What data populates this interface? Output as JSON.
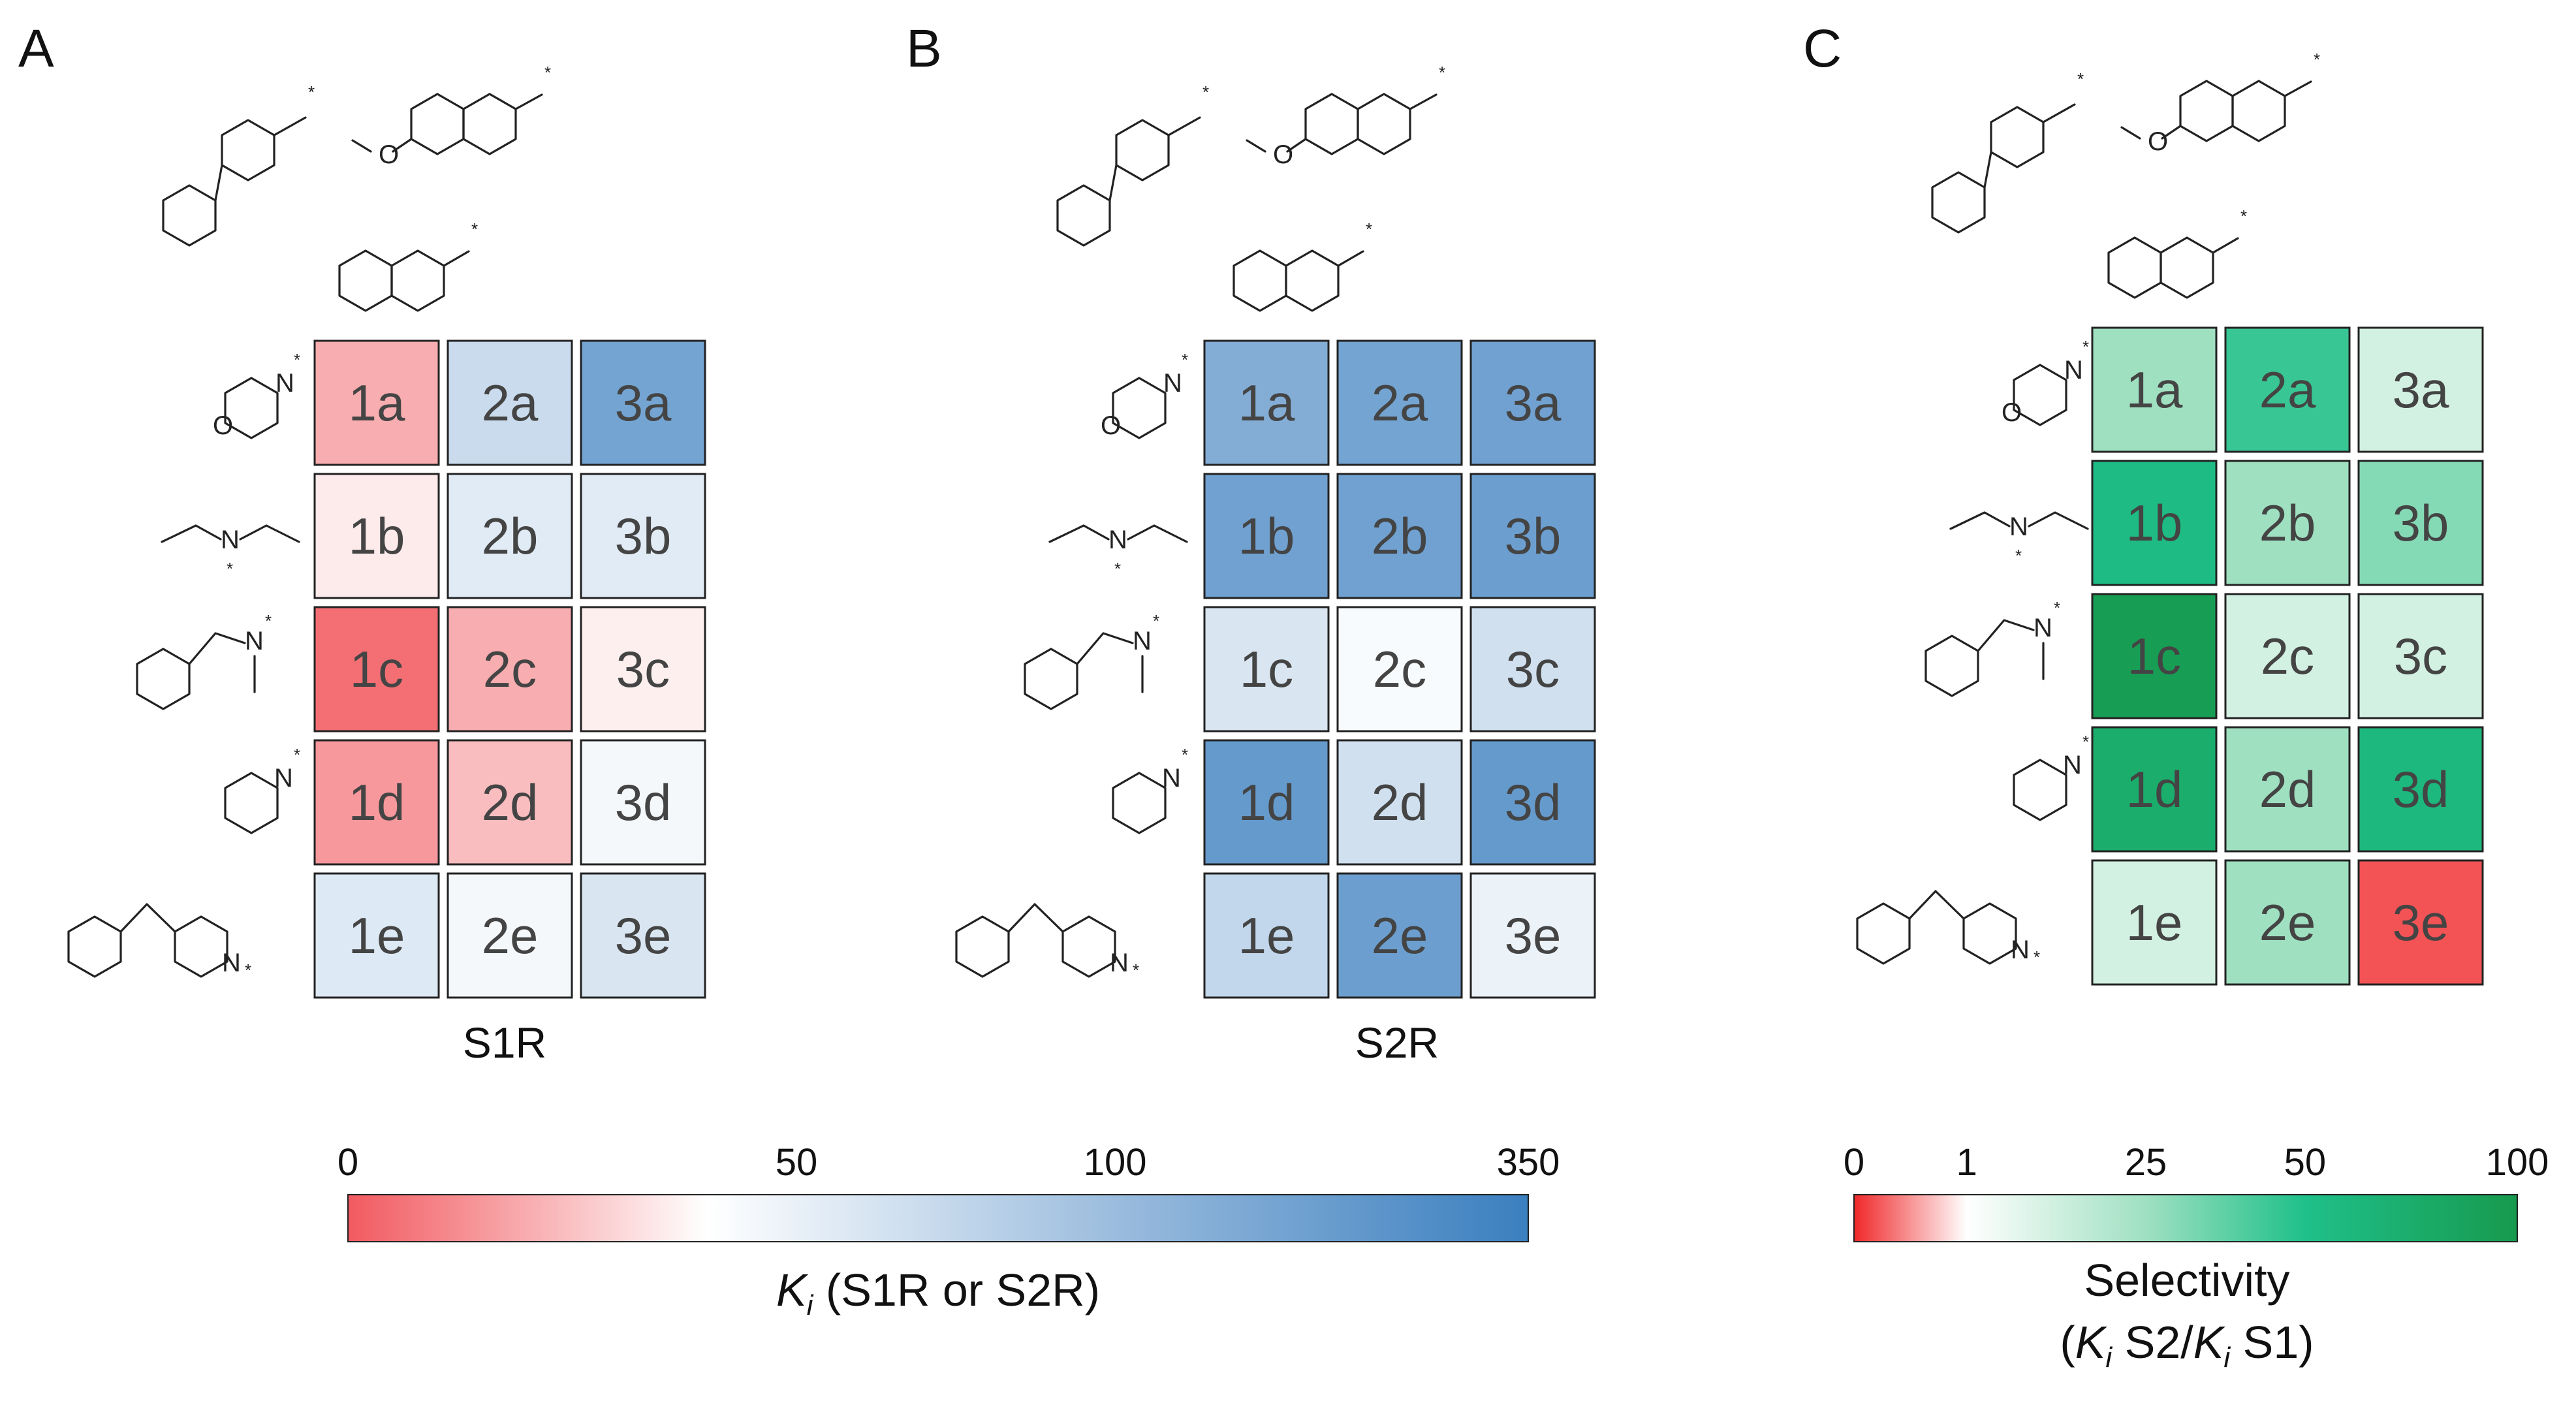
{
  "panels": [
    {
      "id": "A",
      "letter": "A",
      "title": "S1R"
    },
    {
      "id": "B",
      "letter": "B",
      "title": "S2R"
    },
    {
      "id": "C",
      "letter": "C",
      "title": ""
    }
  ],
  "chart_data": [
    {
      "type": "heatmap",
      "panel": "A",
      "title": "S1R",
      "columns": [
        "1",
        "2",
        "3"
      ],
      "rows": [
        "a",
        "b",
        "c",
        "d",
        "e"
      ],
      "labels": [
        [
          "1a",
          "2a",
          "3a"
        ],
        [
          "1b",
          "2b",
          "3b"
        ],
        [
          "1c",
          "2c",
          "3c"
        ],
        [
          "1d",
          "2d",
          "3d"
        ],
        [
          "1e",
          "2e",
          "3e"
        ]
      ],
      "values": [
        [
          20,
          80,
          200
        ],
        [
          35,
          62,
          62
        ],
        [
          5,
          20,
          36
        ],
        [
          15,
          24,
          48
        ],
        [
          65,
          48,
          68
        ]
      ],
      "color_scale": "ki"
    },
    {
      "type": "heatmap",
      "panel": "B",
      "title": "S2R",
      "columns": [
        "1",
        "2",
        "3"
      ],
      "rows": [
        "a",
        "b",
        "c",
        "d",
        "e"
      ],
      "labels": [
        [
          "1a",
          "2a",
          "3a"
        ],
        [
          "1b",
          "2b",
          "3b"
        ],
        [
          "1c",
          "2c",
          "3c"
        ],
        [
          "1d",
          "2d",
          "3d"
        ],
        [
          "1e",
          "2e",
          "3e"
        ]
      ],
      "values": [
        [
          160,
          200,
          210
        ],
        [
          210,
          210,
          220
        ],
        [
          68,
          45,
          75
        ],
        [
          240,
          75,
          240
        ],
        [
          85,
          220,
          55
        ]
      ],
      "color_scale": "ki"
    },
    {
      "type": "heatmap",
      "panel": "C",
      "title": "",
      "columns": [
        "1",
        "2",
        "3"
      ],
      "rows": [
        "a",
        "b",
        "c",
        "d",
        "e"
      ],
      "labels": [
        [
          "1a",
          "2a",
          "3a"
        ],
        [
          "1b",
          "2b",
          "3b"
        ],
        [
          "1c",
          "2c",
          "3c"
        ],
        [
          "1d",
          "2d",
          "3d"
        ],
        [
          "1e",
          "2e",
          "3e"
        ]
      ],
      "values": [
        [
          25,
          45,
          12
        ],
        [
          55,
          25,
          30
        ],
        [
          95,
          12,
          12
        ],
        [
          75,
          25,
          60
        ],
        [
          12,
          25,
          0.2
        ]
      ],
      "color_scale": "selectivity"
    }
  ],
  "color_scales": {
    "ki": {
      "ticks": [
        "0",
        "50",
        "100",
        "350"
      ],
      "tick_values": [
        0,
        50,
        100,
        350
      ],
      "tick_positions": [
        0,
        0.38,
        0.65,
        1
      ],
      "stops": [
        {
          "v": 0,
          "color": "#f15a60"
        },
        {
          "v": 40,
          "color": "#ffffff"
        },
        {
          "v": 120,
          "color": "#93b7db"
        },
        {
          "v": 350,
          "color": "#3a7fbf"
        }
      ],
      "title_italic": "K",
      "title_sub": "i",
      "title_rest": " (S1R or S2R)"
    },
    "selectivity": {
      "ticks": [
        "0",
        "1",
        "25",
        "50",
        "100"
      ],
      "tick_values": [
        0,
        1,
        25,
        50,
        100
      ],
      "tick_positions": [
        0,
        0.17,
        0.44,
        0.68,
        1
      ],
      "stops": [
        {
          "v": 0,
          "color": "#f0282a"
        },
        {
          "v": 1,
          "color": "#ffffff"
        },
        {
          "v": 25,
          "color": "#9fe0c1"
        },
        {
          "v": 50,
          "color": "#1fc08a"
        },
        {
          "v": 100,
          "color": "#179a4e"
        }
      ],
      "title_line1": "Selectivity",
      "title_line2_parts": [
        "(",
        "K",
        "i",
        " S2/",
        "K",
        "i",
        " S1)"
      ]
    }
  },
  "colors": {
    "cell_border": "#222222",
    "text": "#444444"
  }
}
